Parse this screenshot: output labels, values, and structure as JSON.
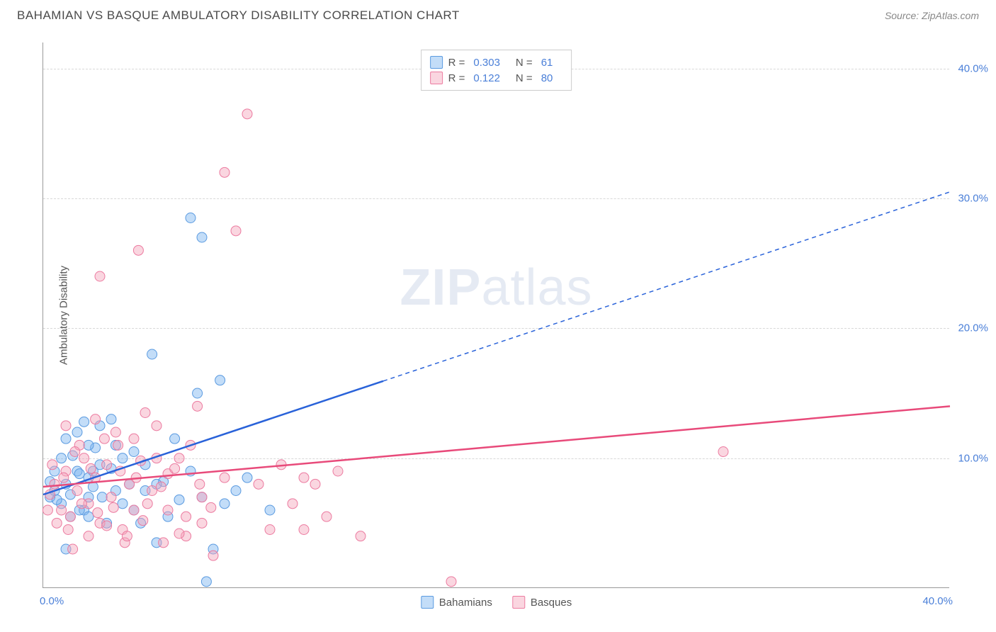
{
  "header": {
    "title": "BAHAMIAN VS BASQUE AMBULATORY DISABILITY CORRELATION CHART",
    "source_prefix": "Source: ",
    "source_name": "ZipAtlas.com"
  },
  "chart": {
    "type": "scatter",
    "y_axis_label": "Ambulatory Disability",
    "watermark_zip": "ZIP",
    "watermark_atlas": "atlas",
    "background_color": "#ffffff",
    "grid_color": "#d8d8d8",
    "axis_color": "#999999",
    "tick_label_color": "#4a7fd8",
    "tick_fontsize": 15,
    "label_fontsize": 15,
    "xlim": [
      0,
      40
    ],
    "ylim": [
      0,
      42
    ],
    "x_ticks": [
      {
        "pos": 0,
        "label": "0.0%"
      },
      {
        "pos": 40,
        "label": "40.0%"
      }
    ],
    "y_ticks": [
      {
        "pos": 10,
        "label": "10.0%"
      },
      {
        "pos": 20,
        "label": "20.0%"
      },
      {
        "pos": 30,
        "label": "30.0%"
      },
      {
        "pos": 40,
        "label": "40.0%"
      }
    ],
    "series": [
      {
        "id": "bahamians",
        "label": "Bahamians",
        "color": "#7bb3f0",
        "fill": "rgba(123,179,240,0.45)",
        "stroke": "#5a9ae0",
        "r_value": "0.303",
        "n_value": "61",
        "marker_radius": 7,
        "trend_color": "#2962d9",
        "trend_width": 2.5,
        "trend_solid_xmax": 15,
        "trend_y_at_0": 7.2,
        "trend_y_at_40": 30.5,
        "points": [
          [
            0.3,
            7.0
          ],
          [
            0.5,
            7.5
          ],
          [
            0.8,
            6.5
          ],
          [
            1.0,
            8.0
          ],
          [
            1.2,
            7.2
          ],
          [
            1.5,
            9.0
          ],
          [
            1.8,
            6.0
          ],
          [
            2.0,
            8.5
          ],
          [
            2.2,
            7.8
          ],
          [
            2.5,
            9.5
          ],
          [
            1.0,
            3.0
          ],
          [
            1.3,
            10.2
          ],
          [
            1.6,
            8.8
          ],
          [
            2.0,
            5.5
          ],
          [
            2.3,
            10.8
          ],
          [
            2.6,
            7.0
          ],
          [
            3.0,
            9.2
          ],
          [
            3.2,
            11.0
          ],
          [
            3.5,
            6.5
          ],
          [
            3.8,
            8.0
          ],
          [
            4.0,
            10.5
          ],
          [
            4.3,
            5.0
          ],
          [
            4.5,
            7.5
          ],
          [
            5.0,
            3.5
          ],
          [
            5.3,
            8.2
          ],
          [
            5.8,
            11.5
          ],
          [
            6.0,
            6.8
          ],
          [
            6.5,
            9.0
          ],
          [
            7.0,
            7.0
          ],
          [
            7.5,
            3.0
          ],
          [
            7.8,
            16.0
          ],
          [
            8.0,
            6.5
          ],
          [
            4.8,
            18.0
          ],
          [
            6.5,
            28.5
          ],
          [
            7.0,
            27.0
          ],
          [
            1.0,
            11.5
          ],
          [
            1.5,
            12.0
          ],
          [
            2.0,
            11.0
          ],
          [
            2.5,
            12.5
          ],
          [
            3.2,
            7.5
          ],
          [
            0.5,
            9.0
          ],
          [
            0.8,
            10.0
          ],
          [
            1.2,
            5.5
          ],
          [
            1.6,
            6.0
          ],
          [
            2.8,
            5.0
          ],
          [
            3.5,
            10.0
          ],
          [
            4.0,
            6.0
          ],
          [
            4.5,
            9.5
          ],
          [
            5.0,
            8.0
          ],
          [
            5.5,
            5.5
          ],
          [
            1.8,
            12.8
          ],
          [
            2.2,
            9.0
          ],
          [
            0.3,
            8.2
          ],
          [
            0.6,
            6.8
          ],
          [
            10.0,
            6.0
          ],
          [
            8.5,
            7.5
          ],
          [
            6.8,
            15.0
          ],
          [
            7.2,
            0.5
          ],
          [
            9.0,
            8.5
          ],
          [
            3.0,
            13.0
          ],
          [
            2.0,
            7.0
          ]
        ]
      },
      {
        "id": "basques",
        "label": "Basques",
        "color": "#f5a3ba",
        "fill": "rgba(245,163,186,0.45)",
        "stroke": "#ec7ba0",
        "r_value": "0.122",
        "n_value": "80",
        "marker_radius": 7,
        "trend_color": "#e84a7a",
        "trend_width": 2.5,
        "trend_solid_xmax": 40,
        "trend_y_at_0": 7.8,
        "trend_y_at_40": 14.0,
        "points": [
          [
            0.3,
            7.2
          ],
          [
            0.5,
            8.0
          ],
          [
            0.8,
            6.0
          ],
          [
            1.0,
            9.0
          ],
          [
            1.2,
            5.5
          ],
          [
            1.5,
            7.5
          ],
          [
            1.8,
            10.0
          ],
          [
            2.0,
            6.5
          ],
          [
            2.3,
            8.5
          ],
          [
            2.5,
            5.0
          ],
          [
            2.8,
            9.5
          ],
          [
            3.0,
            7.0
          ],
          [
            3.3,
            11.0
          ],
          [
            3.5,
            4.5
          ],
          [
            3.8,
            8.0
          ],
          [
            4.0,
            6.0
          ],
          [
            4.3,
            9.8
          ],
          [
            4.5,
            13.5
          ],
          [
            4.8,
            7.5
          ],
          [
            5.0,
            12.5
          ],
          [
            5.3,
            3.5
          ],
          [
            5.5,
            8.8
          ],
          [
            6.0,
            10.0
          ],
          [
            6.3,
            4.0
          ],
          [
            6.8,
            14.0
          ],
          [
            7.0,
            7.0
          ],
          [
            7.5,
            2.5
          ],
          [
            8.0,
            8.5
          ],
          [
            8.5,
            27.5
          ],
          [
            9.0,
            36.5
          ],
          [
            9.5,
            8.0
          ],
          [
            10.0,
            4.5
          ],
          [
            10.5,
            9.5
          ],
          [
            11.0,
            6.5
          ],
          [
            4.2,
            26.0
          ],
          [
            2.5,
            24.0
          ],
          [
            11.5,
            4.5
          ],
          [
            12.0,
            8.0
          ],
          [
            12.5,
            5.5
          ],
          [
            13.0,
            9.0
          ],
          [
            14.0,
            4.0
          ],
          [
            18.0,
            0.5
          ],
          [
            8.0,
            32.0
          ],
          [
            1.0,
            12.5
          ],
          [
            1.3,
            3.0
          ],
          [
            1.6,
            11.0
          ],
          [
            2.0,
            4.0
          ],
          [
            2.3,
            13.0
          ],
          [
            2.8,
            4.8
          ],
          [
            3.2,
            12.0
          ],
          [
            3.6,
            3.5
          ],
          [
            4.0,
            11.5
          ],
          [
            4.4,
            5.2
          ],
          [
            5.0,
            10.0
          ],
          [
            5.5,
            6.0
          ],
          [
            6.0,
            4.2
          ],
          [
            6.5,
            11.0
          ],
          [
            7.0,
            5.0
          ],
          [
            0.2,
            6.0
          ],
          [
            0.4,
            9.5
          ],
          [
            0.6,
            5.0
          ],
          [
            0.9,
            8.5
          ],
          [
            1.1,
            4.5
          ],
          [
            1.4,
            10.5
          ],
          [
            1.7,
            6.5
          ],
          [
            2.1,
            9.2
          ],
          [
            2.4,
            5.8
          ],
          [
            2.7,
            11.5
          ],
          [
            3.1,
            6.2
          ],
          [
            3.4,
            9.0
          ],
          [
            3.7,
            4.0
          ],
          [
            4.1,
            8.5
          ],
          [
            4.6,
            6.5
          ],
          [
            5.2,
            7.8
          ],
          [
            5.8,
            9.2
          ],
          [
            6.3,
            5.5
          ],
          [
            6.9,
            8.0
          ],
          [
            7.4,
            6.2
          ],
          [
            30.0,
            10.5
          ],
          [
            11.5,
            8.5
          ]
        ]
      }
    ]
  }
}
